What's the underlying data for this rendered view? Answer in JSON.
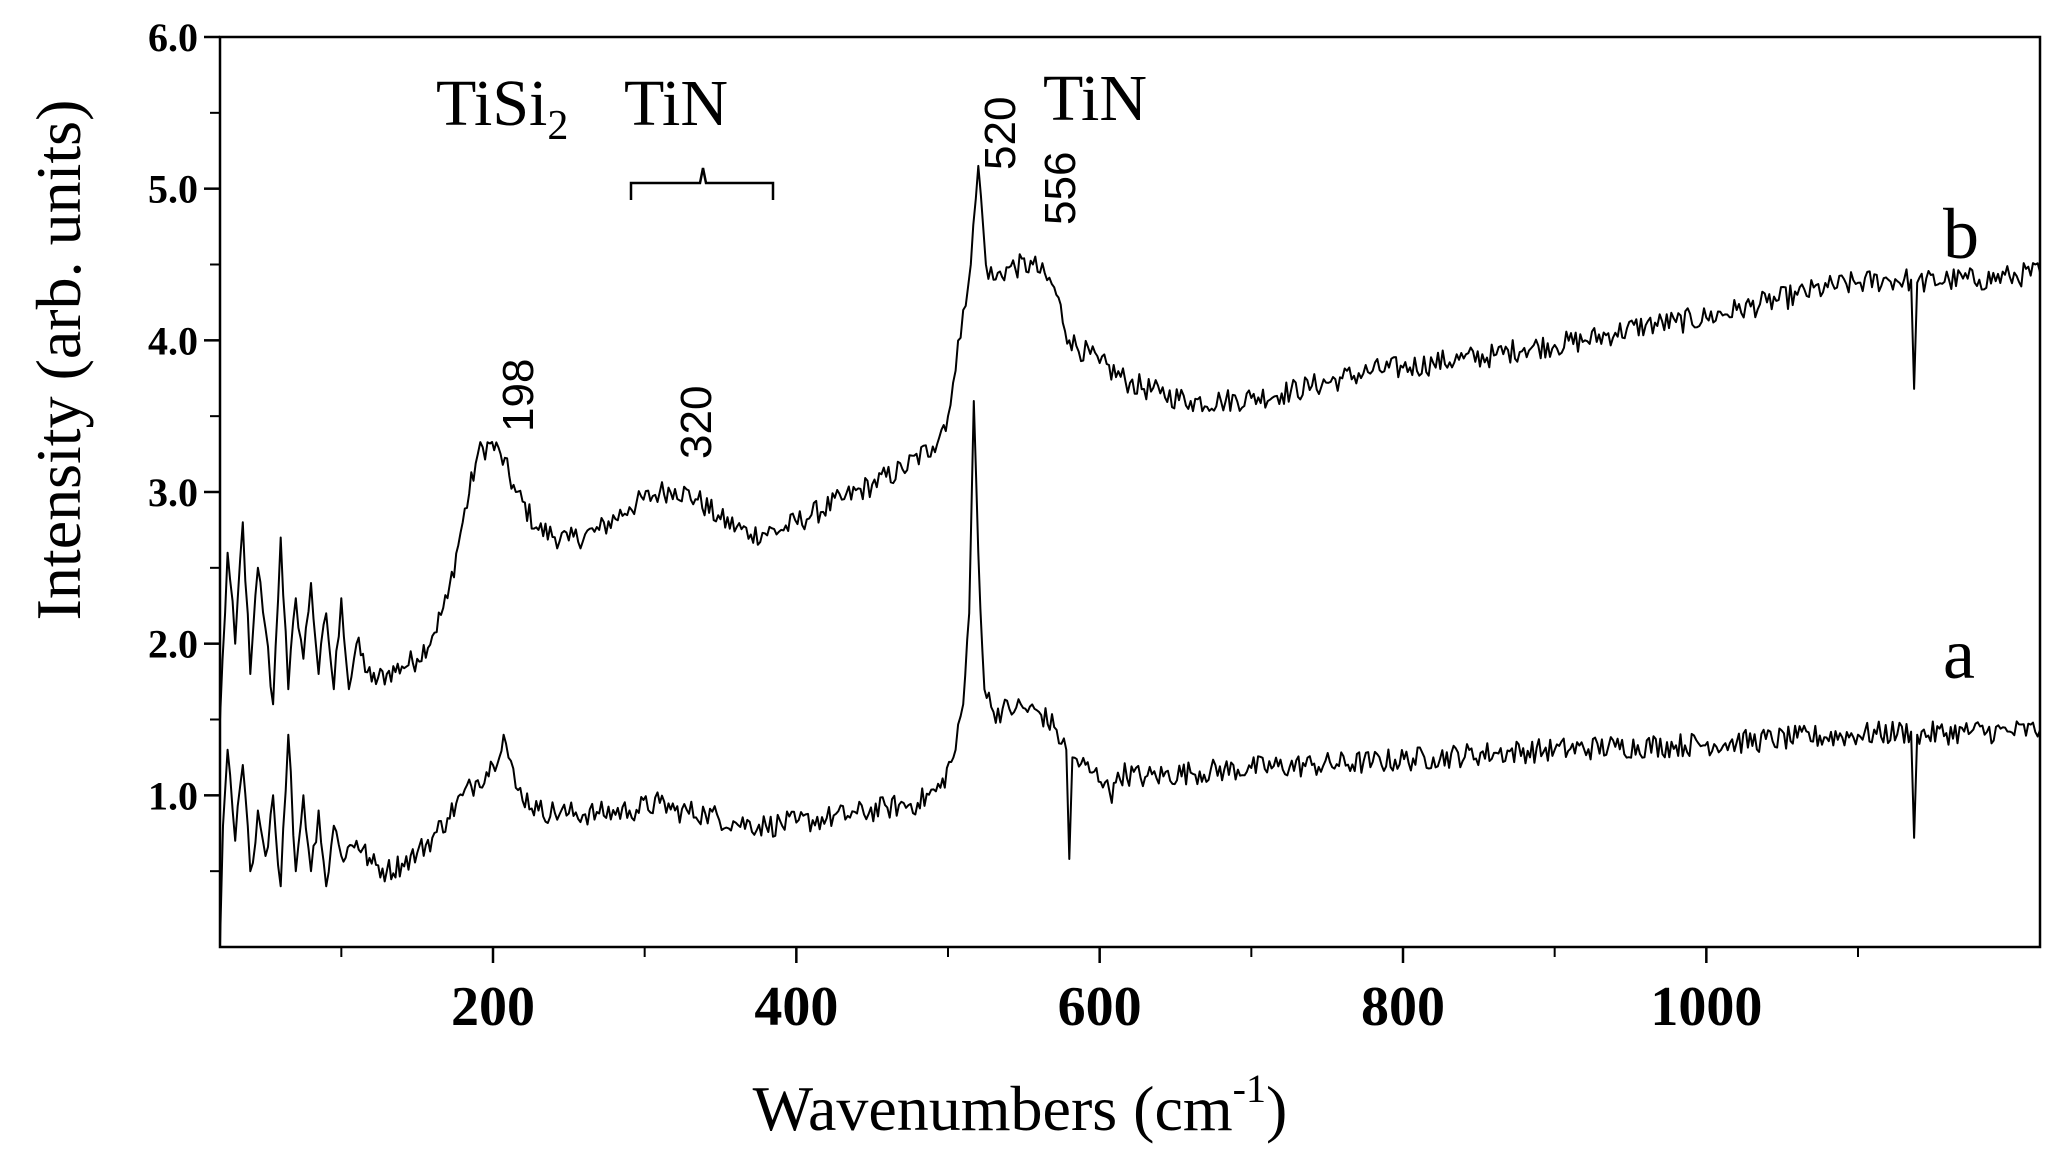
{
  "chart_data": {
    "type": "line",
    "xlabel": "Wavenumbers (cm",
    "xlabel_sup": "-1",
    "xlabel_close": ")",
    "ylabel": "Intensity  (arb. units)",
    "xlim": [
      20,
      1220
    ],
    "ylim": [
      0,
      6.0
    ],
    "x_ticks": [
      200,
      400,
      600,
      800,
      1000
    ],
    "x_tick_labels": [
      "200",
      "400",
      "600",
      "800",
      "1000"
    ],
    "y_ticks": [
      1.0,
      2.0,
      3.0,
      4.0,
      5.0,
      6.0
    ],
    "y_tick_labels": [
      "1.0",
      "2.0",
      "3.0",
      "4.0",
      "5.0",
      "6.0"
    ],
    "grid": false,
    "annotations": {
      "tisi2_main": "TiSi",
      "tisi2_sub": "2",
      "tin_left": "TiN",
      "tin_right": "TiN",
      "peak_198": "198",
      "peak_320": "320",
      "peak_520": "520",
      "peak_556": "556"
    },
    "series": [
      {
        "name": "b",
        "color": "#000000",
        "points": [
          [
            20,
            1.5
          ],
          [
            25,
            2.6
          ],
          [
            30,
            2.0
          ],
          [
            35,
            2.8
          ],
          [
            40,
            1.8
          ],
          [
            45,
            2.5
          ],
          [
            50,
            2.1
          ],
          [
            55,
            1.6
          ],
          [
            60,
            2.7
          ],
          [
            65,
            1.7
          ],
          [
            70,
            2.3
          ],
          [
            75,
            1.9
          ],
          [
            80,
            2.4
          ],
          [
            85,
            1.8
          ],
          [
            90,
            2.2
          ],
          [
            95,
            1.7
          ],
          [
            100,
            2.3
          ],
          [
            105,
            1.7
          ],
          [
            110,
            2.0
          ],
          [
            120,
            1.75
          ],
          [
            130,
            1.8
          ],
          [
            140,
            1.85
          ],
          [
            150,
            1.9
          ],
          [
            160,
            2.05
          ],
          [
            170,
            2.3
          ],
          [
            180,
            2.8
          ],
          [
            190,
            3.25
          ],
          [
            198,
            3.32
          ],
          [
            205,
            3.25
          ],
          [
            215,
            3.0
          ],
          [
            230,
            2.75
          ],
          [
            250,
            2.68
          ],
          [
            270,
            2.75
          ],
          [
            290,
            2.9
          ],
          [
            310,
            3.0
          ],
          [
            320,
            3.02
          ],
          [
            335,
            2.95
          ],
          [
            350,
            2.82
          ],
          [
            370,
            2.72
          ],
          [
            390,
            2.75
          ],
          [
            410,
            2.85
          ],
          [
            430,
            2.95
          ],
          [
            450,
            3.05
          ],
          [
            470,
            3.15
          ],
          [
            490,
            3.3
          ],
          [
            500,
            3.5
          ],
          [
            505,
            3.8
          ],
          [
            510,
            4.2
          ],
          [
            515,
            4.5
          ],
          [
            520,
            5.15
          ],
          [
            525,
            4.5
          ],
          [
            530,
            4.4
          ],
          [
            540,
            4.48
          ],
          [
            556,
            4.5
          ],
          [
            570,
            4.35
          ],
          [
            580,
            4.0
          ],
          [
            600,
            3.85
          ],
          [
            620,
            3.72
          ],
          [
            640,
            3.65
          ],
          [
            660,
            3.6
          ],
          [
            680,
            3.6
          ],
          [
            700,
            3.62
          ],
          [
            720,
            3.65
          ],
          [
            740,
            3.7
          ],
          [
            760,
            3.75
          ],
          [
            780,
            3.8
          ],
          [
            800,
            3.82
          ],
          [
            820,
            3.85
          ],
          [
            840,
            3.88
          ],
          [
            860,
            3.9
          ],
          [
            880,
            3.95
          ],
          [
            900,
            3.97
          ],
          [
            920,
            4.0
          ],
          [
            940,
            4.05
          ],
          [
            960,
            4.1
          ],
          [
            980,
            4.12
          ],
          [
            1000,
            4.15
          ],
          [
            1020,
            4.2
          ],
          [
            1040,
            4.25
          ],
          [
            1060,
            4.3
          ],
          [
            1080,
            4.35
          ],
          [
            1100,
            4.38
          ],
          [
            1120,
            4.4
          ],
          [
            1135,
            4.4
          ],
          [
            1137,
            3.68
          ],
          [
            1139,
            4.38
          ],
          [
            1160,
            4.4
          ],
          [
            1180,
            4.4
          ],
          [
            1200,
            4.42
          ],
          [
            1220,
            4.45
          ]
        ]
      },
      {
        "name": "a",
        "color": "#000000",
        "points": [
          [
            20,
            0.02
          ],
          [
            22,
            0.8
          ],
          [
            25,
            1.3
          ],
          [
            30,
            0.7
          ],
          [
            35,
            1.2
          ],
          [
            40,
            0.5
          ],
          [
            45,
            0.9
          ],
          [
            50,
            0.6
          ],
          [
            55,
            1.0
          ],
          [
            60,
            0.4
          ],
          [
            65,
            1.4
          ],
          [
            70,
            0.5
          ],
          [
            75,
            1.0
          ],
          [
            80,
            0.5
          ],
          [
            85,
            0.9
          ],
          [
            90,
            0.4
          ],
          [
            95,
            0.8
          ],
          [
            100,
            0.6
          ],
          [
            110,
            0.7
          ],
          [
            120,
            0.55
          ],
          [
            130,
            0.5
          ],
          [
            140,
            0.55
          ],
          [
            150,
            0.62
          ],
          [
            160,
            0.72
          ],
          [
            170,
            0.85
          ],
          [
            180,
            1.0
          ],
          [
            190,
            1.1
          ],
          [
            200,
            1.2
          ],
          [
            207,
            1.4
          ],
          [
            215,
            1.05
          ],
          [
            230,
            0.9
          ],
          [
            250,
            0.88
          ],
          [
            270,
            0.88
          ],
          [
            290,
            0.9
          ],
          [
            310,
            0.95
          ],
          [
            320,
            0.9
          ],
          [
            340,
            0.88
          ],
          [
            360,
            0.82
          ],
          [
            380,
            0.8
          ],
          [
            400,
            0.82
          ],
          [
            420,
            0.85
          ],
          [
            440,
            0.88
          ],
          [
            460,
            0.92
          ],
          [
            480,
            0.95
          ],
          [
            495,
            1.05
          ],
          [
            505,
            1.3
          ],
          [
            510,
            1.6
          ],
          [
            514,
            2.2
          ],
          [
            517,
            3.6
          ],
          [
            520,
            2.6
          ],
          [
            524,
            1.7
          ],
          [
            530,
            1.55
          ],
          [
            545,
            1.58
          ],
          [
            560,
            1.55
          ],
          [
            570,
            1.45
          ],
          [
            578,
            1.3
          ],
          [
            580,
            0.58
          ],
          [
            582,
            1.25
          ],
          [
            595,
            1.15
          ],
          [
            605,
            1.1
          ],
          [
            608,
            0.95
          ],
          [
            612,
            1.15
          ],
          [
            630,
            1.12
          ],
          [
            660,
            1.15
          ],
          [
            700,
            1.18
          ],
          [
            740,
            1.2
          ],
          [
            780,
            1.22
          ],
          [
            820,
            1.25
          ],
          [
            860,
            1.28
          ],
          [
            900,
            1.3
          ],
          [
            940,
            1.32
          ],
          [
            980,
            1.33
          ],
          [
            1020,
            1.35
          ],
          [
            1060,
            1.38
          ],
          [
            1100,
            1.4
          ],
          [
            1135,
            1.42
          ],
          [
            1137,
            0.72
          ],
          [
            1139,
            1.4
          ],
          [
            1170,
            1.42
          ],
          [
            1200,
            1.42
          ],
          [
            1220,
            1.43
          ]
        ]
      }
    ]
  }
}
